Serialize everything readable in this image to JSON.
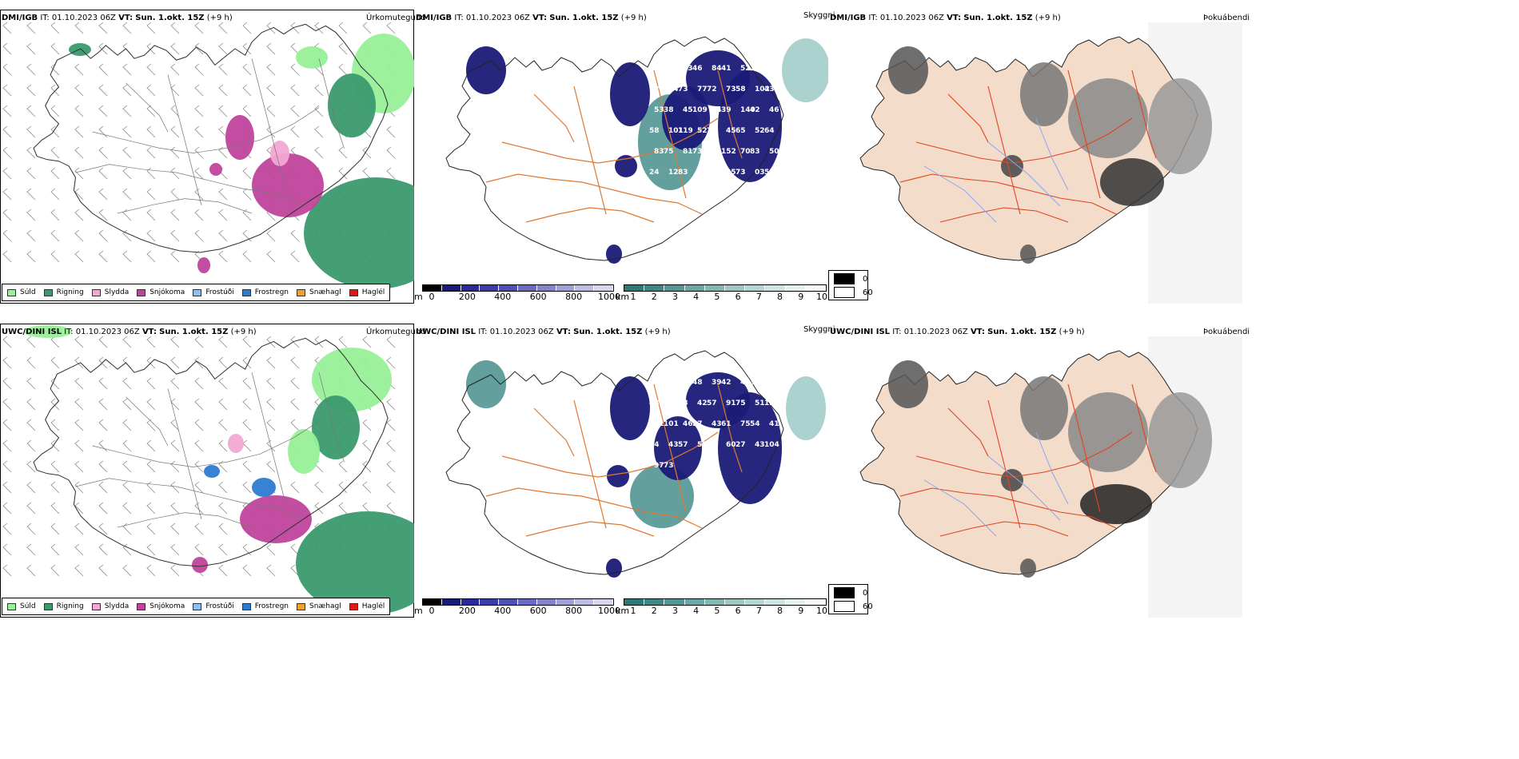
{
  "rows": [
    {
      "model": "DMI/IGB",
      "it_label": "IT:",
      "it": "01.10.2023 06Z",
      "vt_label": "VT:",
      "vt": "Sun. 1.okt. 15Z",
      "lead": "(+9 h)",
      "cloud_labels": [
        "56",
        "47",
        "63",
        "46",
        "84",
        "41",
        "52",
        "101",
        "63",
        "72",
        "74",
        "73",
        "77",
        "72",
        "73",
        "58",
        "102",
        "43",
        "53",
        "38",
        "45",
        "109",
        "64",
        "39",
        "140",
        "42",
        "46",
        "58",
        "101",
        "119",
        "52",
        "73",
        "45",
        "65",
        "52",
        "64",
        "83",
        "75",
        "81",
        "73",
        "33",
        "152",
        "70",
        "83",
        "50",
        "24",
        "12",
        "83",
        "199",
        "75",
        "35",
        "73",
        "03",
        "53"
      ]
    },
    {
      "model": "UWC/DINI ISL",
      "it_label": "IT:",
      "it": "01.10.2023 06Z",
      "vt_label": "VT:",
      "vt": "Sun. 1.okt. 15Z",
      "lead": "(+9 h)",
      "cloud_labels": [
        "65",
        "49",
        "81",
        "48",
        "39",
        "42",
        "40",
        "38",
        "60",
        "48",
        "41",
        "38",
        "42",
        "57",
        "91",
        "75",
        "51",
        "127",
        "91",
        "101",
        "46",
        "27",
        "43",
        "61",
        "75",
        "54",
        "41",
        "44",
        "43",
        "57",
        "55",
        "83",
        "60",
        "27",
        "43",
        "104",
        "97",
        "73"
      ]
    }
  ],
  "precip": {
    "title": "Úrkomutegund",
    "legend": [
      {
        "label": "Súld",
        "color": "#98f098"
      },
      {
        "label": "Rigning",
        "color": "#3a9a6e"
      },
      {
        "label": "Slydda",
        "color": "#f2a8d4"
      },
      {
        "label": "Snjókoma",
        "color": "#c0449c"
      },
      {
        "label": "Frostúði",
        "color": "#8cc0f0"
      },
      {
        "label": "Frostregn",
        "color": "#2e7ad0"
      },
      {
        "label": "Snæhagl",
        "color": "#f0a030"
      },
      {
        "label": "Haglél",
        "color": "#e01818"
      }
    ]
  },
  "cloud": {
    "title": "Skyggni",
    "m_unit": "m",
    "m_ticks": [
      "0",
      "200",
      "400",
      "600",
      "800",
      "1000"
    ],
    "m_colors": [
      "#000000",
      "#1a1a78",
      "#2a2a9a",
      "#3c3ca8",
      "#5050b4",
      "#6a6ac0",
      "#8484cc",
      "#a0a0d8",
      "#bcbce4",
      "#d6d6ee"
    ],
    "km_unit": "km",
    "km_ticks": [
      "1",
      "2",
      "3",
      "4",
      "5",
      "6",
      "7",
      "8",
      "9",
      "10"
    ],
    "km_colors": [
      "#2a7a78",
      "#3c8886",
      "#529894",
      "#6aa8a4",
      "#82b8b4",
      "#9cc8c4",
      "#b4d6d2",
      "#cce4e2",
      "#e4f0ee",
      "#f4f8f8"
    ]
  },
  "fog": {
    "title": "Þokuábendi",
    "legend": [
      {
        "label": "0",
        "color": "#000000"
      },
      {
        "label": "60",
        "color": "#ffffff"
      }
    ]
  }
}
